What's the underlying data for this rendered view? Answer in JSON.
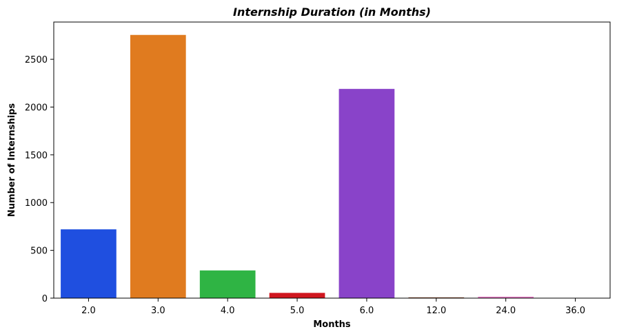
{
  "chart_data": {
    "type": "bar",
    "title": "Internship Duration (in Months)",
    "xlabel": "Months",
    "ylabel": "Number of Internships",
    "categories": [
      "2.0",
      "3.0",
      "4.0",
      "5.0",
      "6.0",
      "12.0",
      "24.0",
      "36.0"
    ],
    "values": [
      720,
      2755,
      290,
      55,
      2190,
      8,
      15,
      3
    ],
    "colors": [
      "#1f4fe0",
      "#e07b1f",
      "#2fb444",
      "#d0161f",
      "#8943c9",
      "#8b4a2c",
      "#e377c2",
      "#7f7f7f"
    ],
    "ylim": [
      0,
      2890
    ],
    "yticks": [
      0,
      500,
      1000,
      1500,
      2000,
      2500
    ],
    "grid": false,
    "legend": "none"
  }
}
